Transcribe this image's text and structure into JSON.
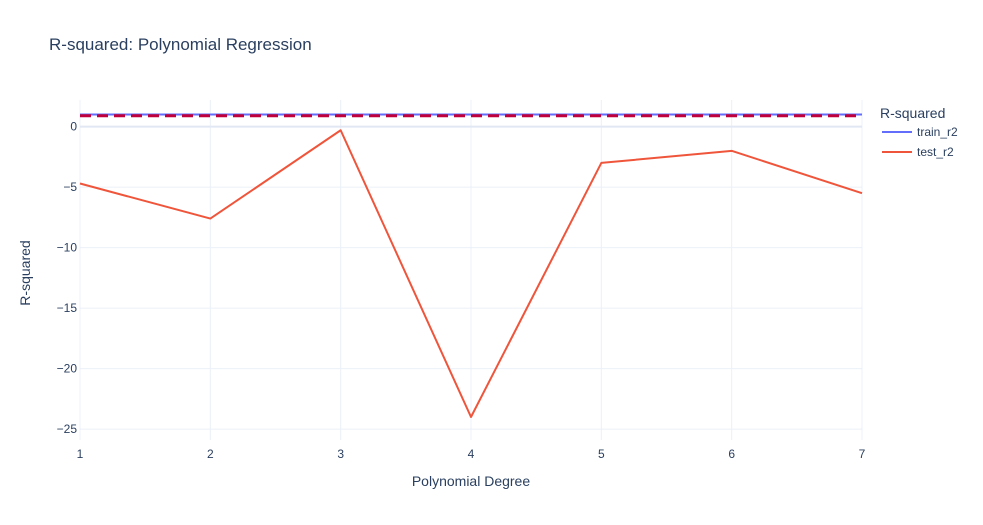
{
  "chart_data": {
    "type": "line",
    "title": "R-squared: Polynomial Regression",
    "xlabel": "Polynomial Degree",
    "ylabel": "R-squared",
    "x": [
      1,
      2,
      3,
      4,
      5,
      6,
      7
    ],
    "xlim": [
      1,
      7
    ],
    "ylim": [
      -25.9,
      2.2
    ],
    "x_ticks": [
      1,
      2,
      3,
      4,
      5,
      6,
      7
    ],
    "y_ticks": [
      0,
      -5,
      -10,
      -15,
      -20,
      -25
    ],
    "y_tick_labels": [
      "0",
      "−5",
      "−10",
      "−15",
      "−20",
      "−25"
    ],
    "grid": true,
    "legend": {
      "title": "R-squared",
      "position": "right"
    },
    "series": [
      {
        "name": "train_r2",
        "color": "#636efa",
        "values": [
          1,
          1,
          1,
          1,
          1,
          1,
          1
        ]
      },
      {
        "name": "test_r2",
        "color": "#ef553b",
        "values": [
          -4.7,
          -7.6,
          -0.3,
          -24.0,
          -3.0,
          -2.0,
          -5.5
        ]
      }
    ],
    "reference_line": {
      "y": 0.9,
      "color": "#c0003c",
      "style": "dashed"
    }
  }
}
